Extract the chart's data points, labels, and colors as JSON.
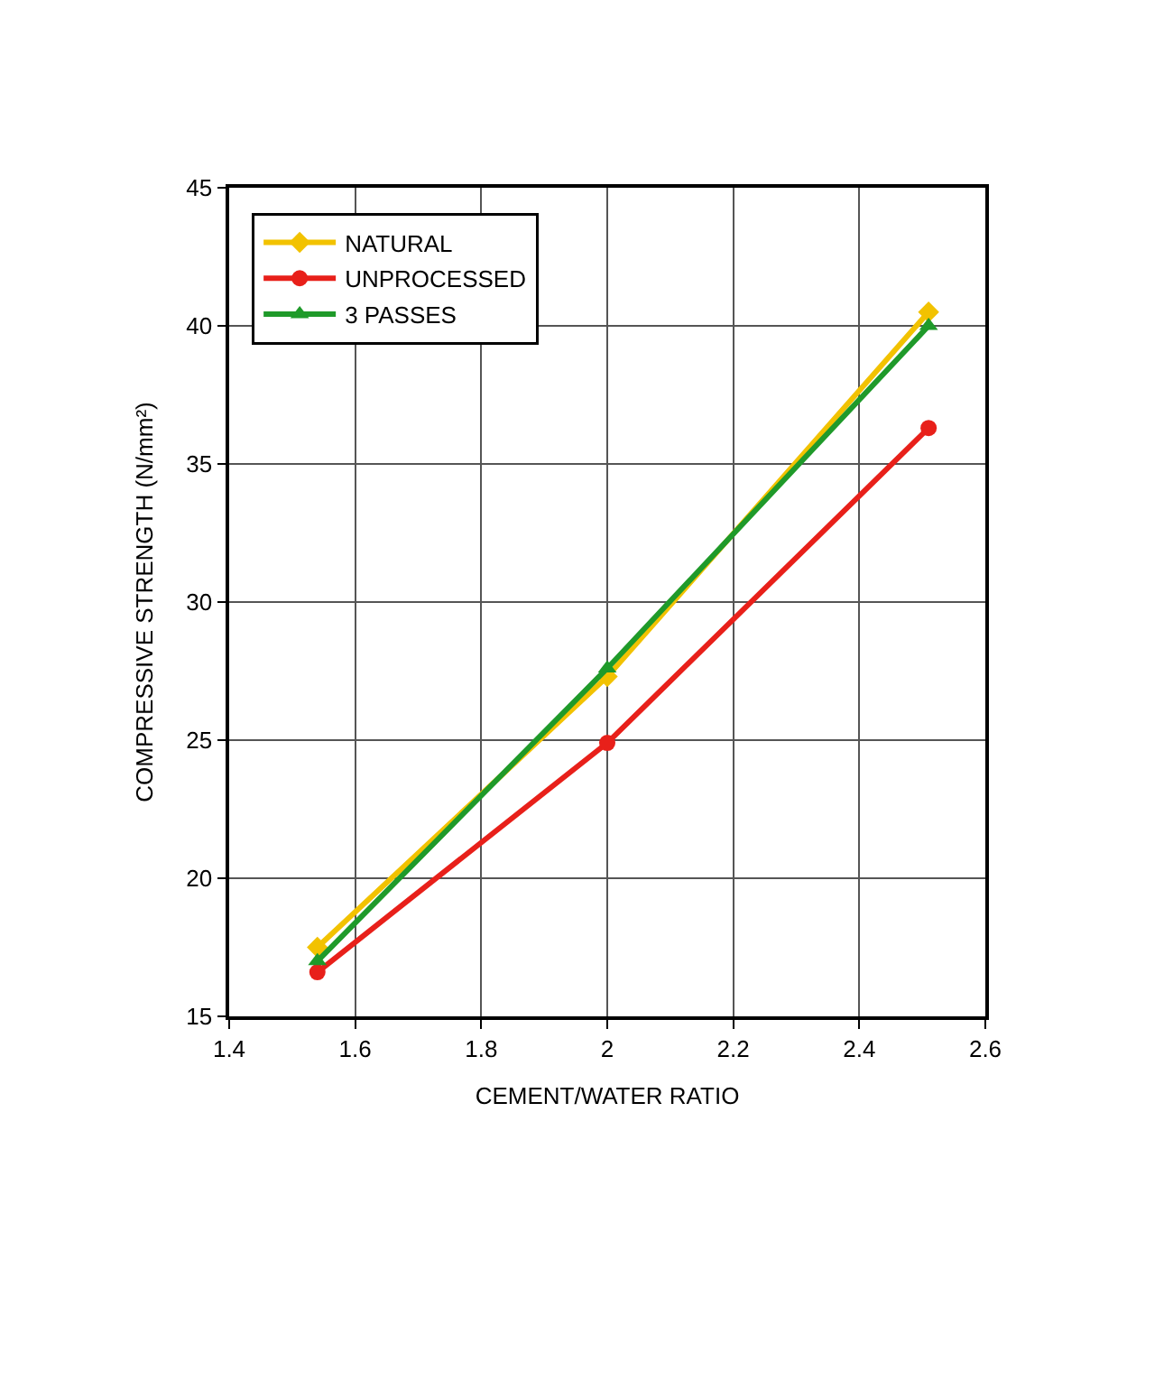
{
  "chart_data": {
    "type": "line",
    "xlabel": "CEMENT/WATER RATIO",
    "ylabel": "COMPRESSIVE STRENGTH (N/mm²)",
    "x": [
      1.54,
      2.0,
      2.51
    ],
    "series": [
      {
        "name": "NATURAL",
        "color": "#f2c200",
        "marker": "diamond",
        "values": [
          17.5,
          27.3,
          40.5
        ]
      },
      {
        "name": "UNPROCESSED",
        "color": "#e8201a",
        "marker": "circle",
        "values": [
          16.6,
          24.9,
          36.3
        ]
      },
      {
        "name": "3 PASSES",
        "color": "#1f9a2a",
        "marker": "triangle",
        "values": [
          17.0,
          27.6,
          40.0
        ]
      }
    ],
    "xlim": [
      1.4,
      2.6
    ],
    "xticks": [
      1.4,
      1.6,
      1.8,
      2,
      2.2,
      2.4,
      2.6
    ],
    "ylim": [
      15,
      45
    ],
    "yticks": [
      15,
      20,
      25,
      30,
      35,
      40,
      45
    ],
    "grid": true,
    "legend": "top left",
    "line_style": "solid"
  }
}
